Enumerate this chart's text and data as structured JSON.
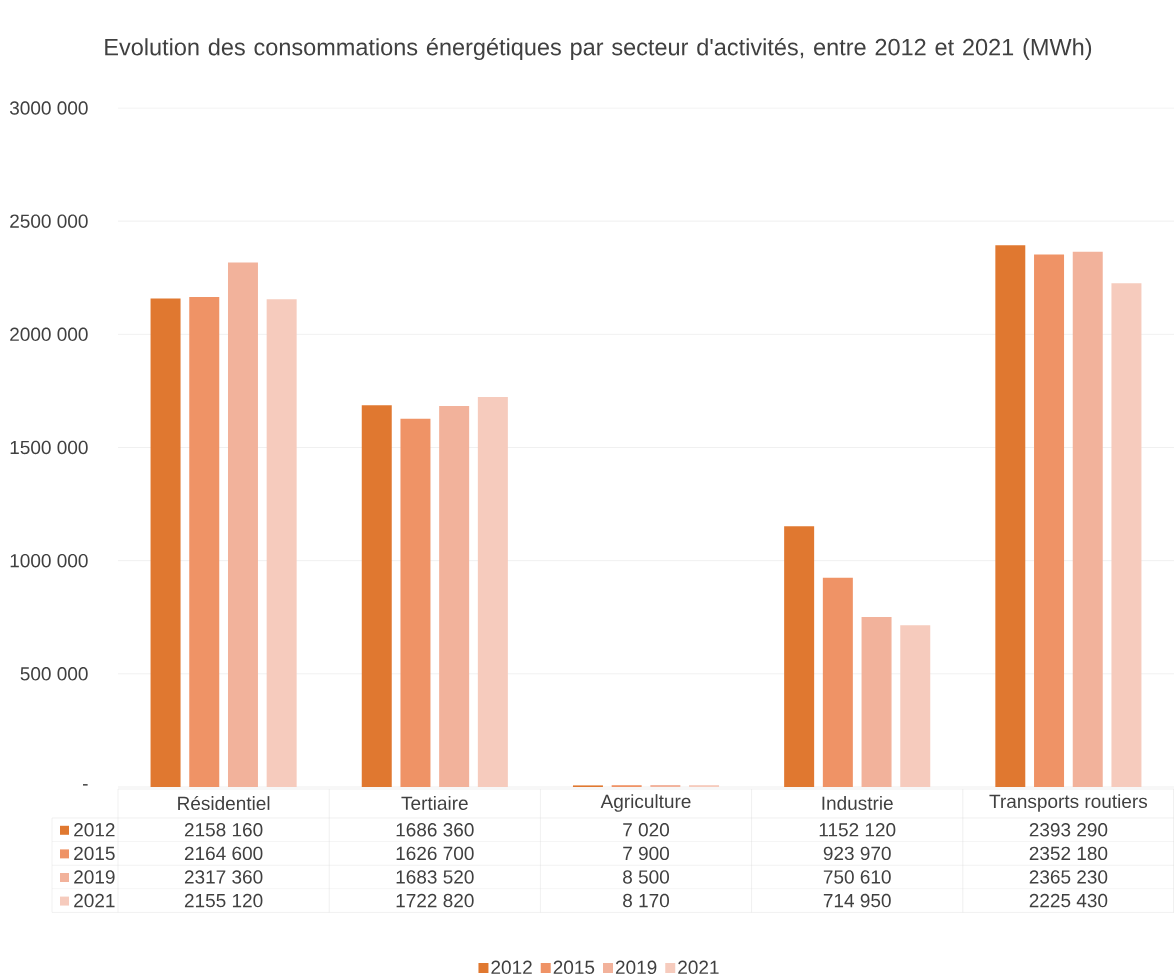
{
  "chart_data": {
    "type": "bar",
    "title": "Evolution des consommations énergétiques par secteur d'activités, entre 2012 et 2021 (MWh)",
    "categories": [
      "Résidentiel",
      "Tertiaire",
      "Agriculture",
      "Industrie",
      "Transports routiers"
    ],
    "series": [
      {
        "name": "2012",
        "color": "#e07830",
        "values": [
          2158160,
          1686360,
          7020,
          1152120,
          2393290
        ],
        "value_labels": [
          "2158 160",
          "1686 360",
          "7 020",
          "1152 120",
          "2393 290"
        ]
      },
      {
        "name": "2015",
        "color": "#ef9366",
        "values": [
          2164600,
          1626700,
          7900,
          923970,
          2352180
        ],
        "value_labels": [
          "2164 600",
          "1626 700",
          "7 900",
          "923 970",
          "2352 180"
        ]
      },
      {
        "name": "2019",
        "color": "#f2b29b",
        "values": [
          2317360,
          1683520,
          8500,
          750610,
          2365230
        ],
        "value_labels": [
          "2317 360",
          "1683 520",
          "8 500",
          "750 610",
          "2365 230"
        ]
      },
      {
        "name": "2021",
        "color": "#f6cbbd",
        "values": [
          2155120,
          1722820,
          8170,
          714950,
          2225430
        ],
        "value_labels": [
          "2155 120",
          "1722 820",
          "8 170",
          "714 950",
          "2225 430"
        ]
      }
    ],
    "ylim": [
      0,
      3000000
    ],
    "yticks": [
      {
        "value": 0,
        "label": "-"
      },
      {
        "value": 500000,
        "label": "500 000"
      },
      {
        "value": 1000000,
        "label": "1000 000"
      },
      {
        "value": 1500000,
        "label": "1500 000"
      },
      {
        "value": 2000000,
        "label": "2000 000"
      },
      {
        "value": 2500000,
        "label": "2500 000"
      },
      {
        "value": 3000000,
        "label": "3000 000"
      }
    ],
    "grid": "y",
    "legend": "bottom"
  }
}
